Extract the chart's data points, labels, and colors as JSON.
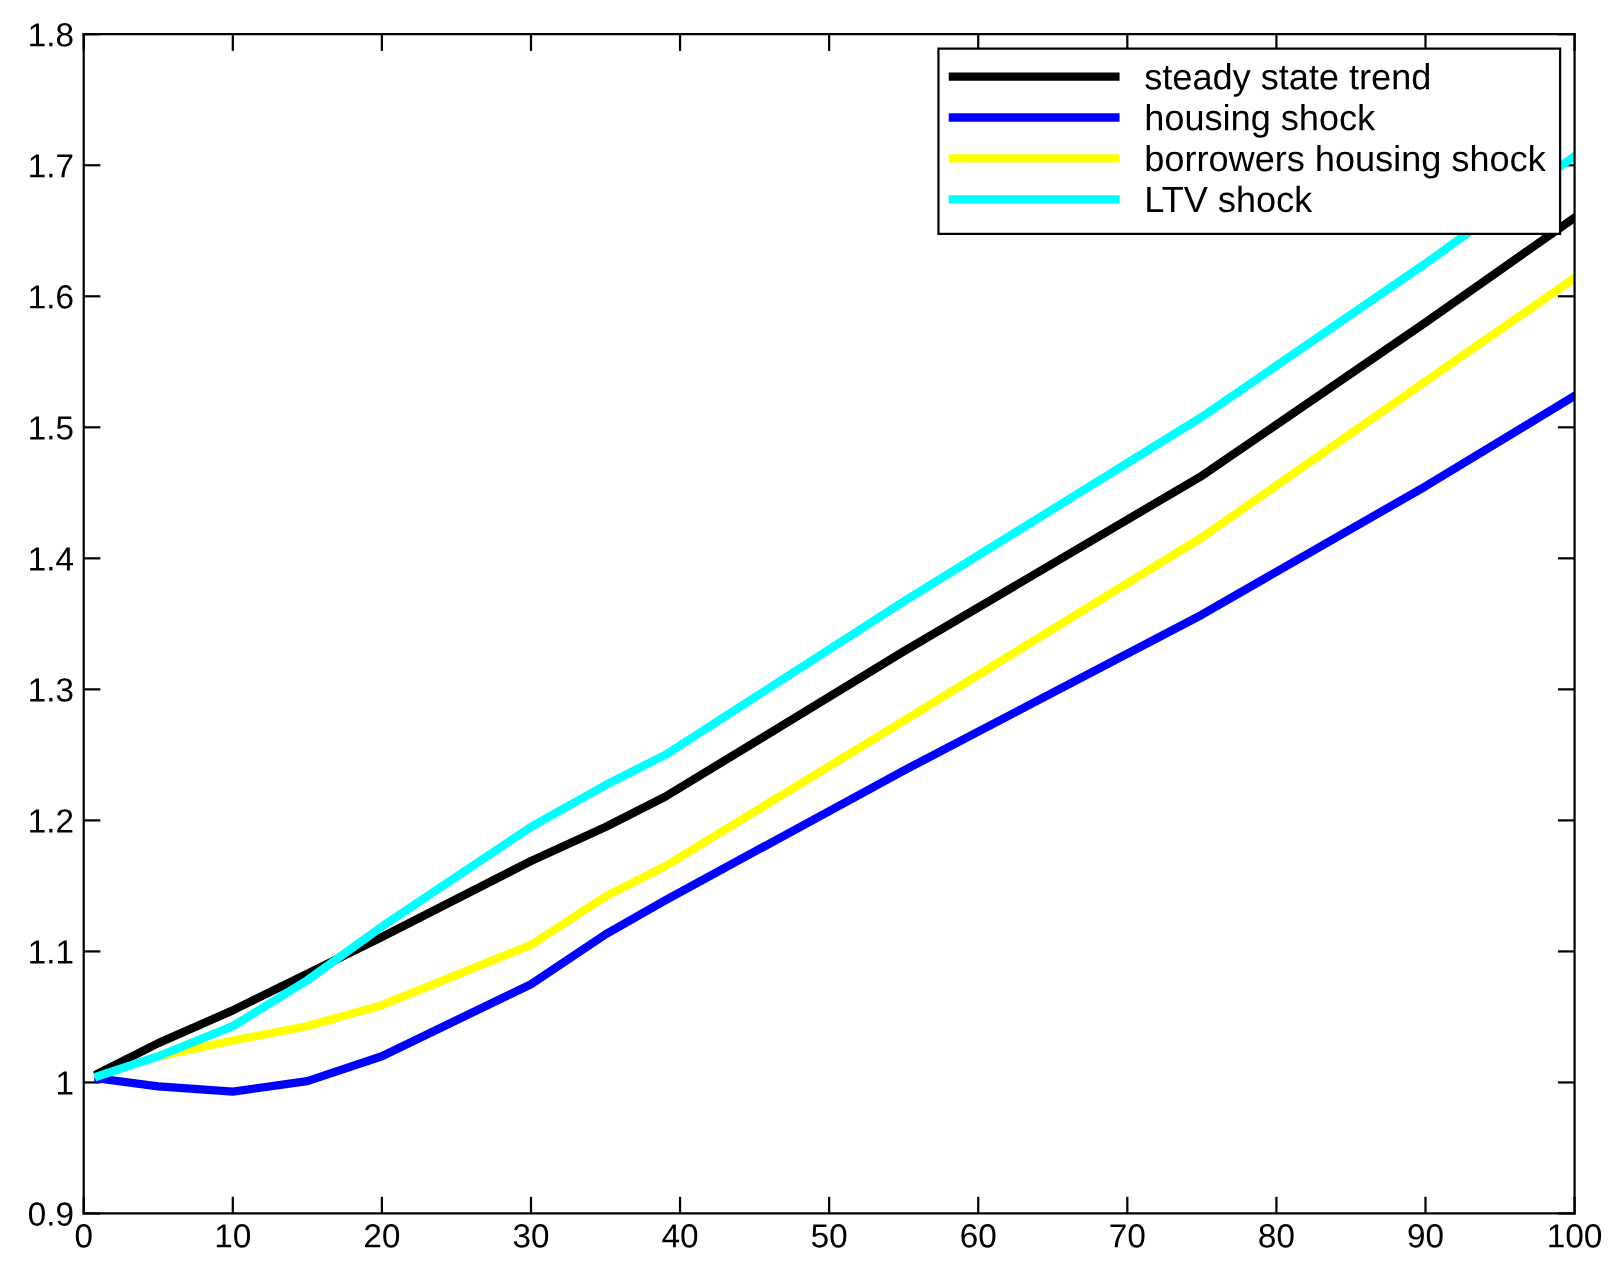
{
  "chart_data": {
    "type": "line",
    "x": [
      1,
      5,
      10,
      15,
      20,
      30,
      35,
      39,
      55,
      75,
      90,
      100
    ],
    "series": [
      {
        "name": "steady state trend",
        "color": "#000000",
        "values": [
          1.007,
          1.03,
          1.055,
          1.083,
          1.111,
          1.169,
          1.195,
          1.218,
          1.329,
          1.463,
          1.58,
          1.66
        ]
      },
      {
        "name": "housing shock",
        "color": "#0000ff",
        "values": [
          1.003,
          0.997,
          0.993,
          1.001,
          1.02,
          1.075,
          1.113,
          1.139,
          1.238,
          1.357,
          1.455,
          1.524
        ]
      },
      {
        "name": "borrowers housing shock",
        "color": "#ffff00",
        "values": [
          null,
          1.02,
          1.032,
          1.043,
          1.059,
          1.105,
          1.142,
          1.165,
          1.276,
          1.416,
          1.535,
          1.614
        ]
      },
      {
        "name": "LTV shock",
        "color": "#00ffff",
        "values": [
          1.005,
          1.02,
          1.043,
          1.078,
          1.119,
          1.195,
          1.227,
          1.25,
          1.367,
          1.508,
          1.625,
          1.707
        ]
      }
    ],
    "xlim": [
      0,
      100
    ],
    "xticks": [
      0,
      10,
      20,
      30,
      40,
      50,
      60,
      70,
      80,
      90,
      100
    ],
    "ylim": [
      0.9,
      1.8
    ],
    "yticks": [
      0.9,
      1,
      1.1,
      1.2,
      1.3,
      1.4,
      1.5,
      1.6,
      1.7,
      1.8
    ],
    "legend": "top right",
    "grid": false
  }
}
